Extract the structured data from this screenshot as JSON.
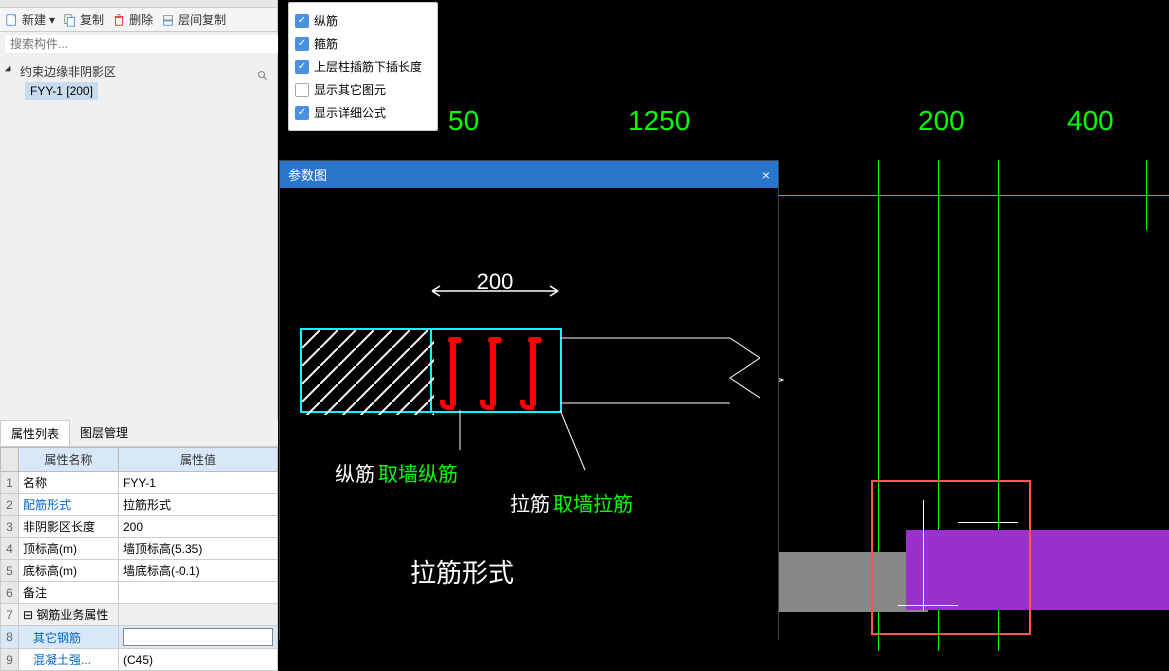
{
  "toolbar": {
    "new": "新建",
    "copy": "复制",
    "delete": "删除",
    "layer_copy": "层间复制"
  },
  "search": {
    "placeholder": "搜索构件..."
  },
  "tree": {
    "parent": "约束边缘非阴影区",
    "child": "FYY-1 [200]"
  },
  "prop_tabs": {
    "list": "属性列表",
    "layer": "图层管理"
  },
  "prop_headers": {
    "name": "属性名称",
    "value": "属性值"
  },
  "props": [
    {
      "num": "1",
      "name": "名称",
      "value": "FYY-1"
    },
    {
      "num": "2",
      "name": "配筋形式",
      "value": "拉筋形式",
      "link": true
    },
    {
      "num": "3",
      "name": "非阴影区长度",
      "value": "200"
    },
    {
      "num": "4",
      "name": "顶标高(m)",
      "value": "墙顶标高(5.35)"
    },
    {
      "num": "5",
      "name": "底标高(m)",
      "value": "墙底标高(-0.1)"
    },
    {
      "num": "6",
      "name": "备注",
      "value": ""
    },
    {
      "num": "7",
      "name": "钢筋业务属性",
      "value": "",
      "group": true
    },
    {
      "num": "8",
      "name": "其它钢筋",
      "value": "",
      "link": true,
      "highlight": true,
      "input": true
    },
    {
      "num": "9",
      "name": "混凝土强...",
      "value": "(C45)",
      "link": true
    }
  ],
  "filters": [
    {
      "label": "纵筋",
      "checked": true
    },
    {
      "label": "箍筋",
      "checked": true
    },
    {
      "label": "上层柱插筋下插长度",
      "checked": true
    },
    {
      "label": "显示其它图元",
      "checked": false
    },
    {
      "label": "显示详细公式",
      "checked": true
    }
  ],
  "modal": {
    "title": "参数图"
  },
  "diagram": {
    "dim": "200",
    "label_zong": "纵筋",
    "label_zong_val": "取墙纵筋",
    "label_la": "拉筋",
    "label_la_val": "取墙拉筋",
    "form_title": "拉筋形式"
  },
  "canvas": {
    "dim_left": "50",
    "dim_mid": "1250",
    "dim_r1": "200",
    "dim_r2": "400",
    "colors": {
      "green": "#00ff00",
      "cyan": "#00ffff",
      "red": "#ff0000",
      "purple": "#9932cc",
      "highlight": "#ff5555"
    }
  }
}
